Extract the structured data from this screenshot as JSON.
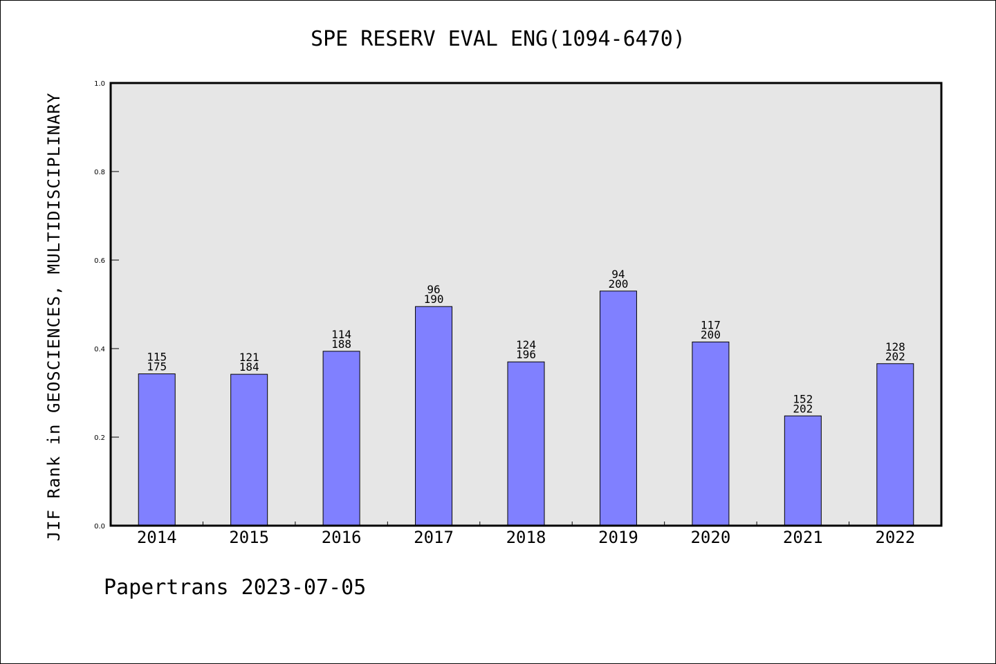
{
  "chart_data": {
    "type": "bar",
    "title": "SPE RESERV EVAL ENG(1094-6470)",
    "xlabel": "",
    "ylabel": "JIF Rank in GEOSCIENCES, MULTIDISCIPLINARY",
    "ylim": [
      0,
      1.0
    ],
    "yticks": [
      "0.0",
      "0.2",
      "0.4",
      "0.6",
      "0.8",
      "1.0"
    ],
    "categories": [
      "2014",
      "2015",
      "2016",
      "2017",
      "2018",
      "2019",
      "2020",
      "2021",
      "2022"
    ],
    "values": [
      0.343,
      0.342,
      0.394,
      0.495,
      0.37,
      0.53,
      0.415,
      0.248,
      0.366
    ],
    "rank": [
      "115",
      "121",
      "114",
      "96",
      "124",
      "94",
      "117",
      "152",
      "128"
    ],
    "total": [
      "175",
      "184",
      "188",
      "190",
      "196",
      "200",
      "200",
      "202",
      "202"
    ],
    "bar_color": "#8080ff",
    "plot_background": "#e6e6e6",
    "grid": false
  },
  "footer": "Papertrans 2023-07-05"
}
